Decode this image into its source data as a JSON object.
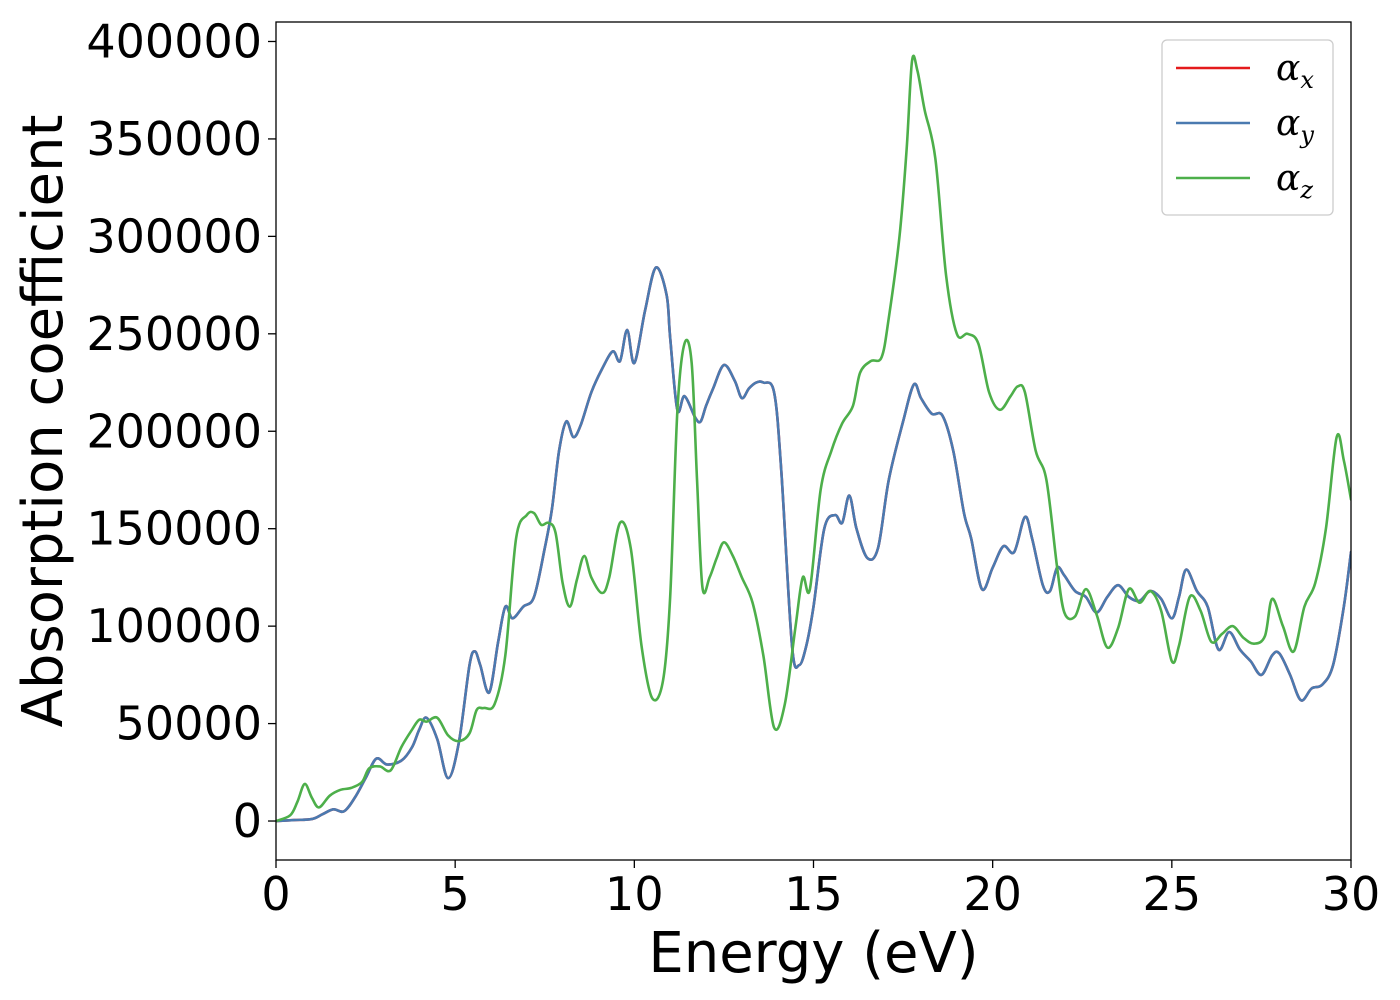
{
  "chart_data": {
    "type": "line",
    "title": "",
    "xlabel": "Energy (eV)",
    "ylabel": "Absorption coefficient",
    "xlim": [
      0,
      30
    ],
    "ylim": [
      -20000,
      410000
    ],
    "xticks": [
      0,
      5,
      10,
      15,
      20,
      25,
      30
    ],
    "yticks": [
      0,
      50000,
      100000,
      150000,
      200000,
      250000,
      300000,
      350000,
      400000
    ],
    "grid": false,
    "legend_position": "top-right",
    "colors": {
      "alpha_x": "#e41a1c",
      "alpha_y": "#4a7ab0",
      "alpha_z": "#4daf4a"
    },
    "series": [
      {
        "name": "αx",
        "legend_base": "α",
        "legend_sub": "x",
        "color": "#e41a1c",
        "x": [
          0,
          0.5,
          1.0,
          1.3,
          1.6,
          1.9,
          2.2,
          2.5,
          2.8,
          3.1,
          3.5,
          3.8,
          4.0,
          4.2,
          4.5,
          4.8,
          5.1,
          5.4,
          5.55,
          5.7,
          5.95,
          6.2,
          6.4,
          6.6,
          6.9,
          7.2,
          7.5,
          7.7,
          7.9,
          8.1,
          8.3,
          8.5,
          8.8,
          9.1,
          9.4,
          9.6,
          9.8,
          10.0,
          10.3,
          10.6,
          10.9,
          11.0,
          11.2,
          11.4,
          11.7,
          11.85,
          12.0,
          12.2,
          12.5,
          12.8,
          13.0,
          13.2,
          13.4,
          13.6,
          13.9,
          14.1,
          14.4,
          14.6,
          14.8,
          15.0,
          15.3,
          15.6,
          15.8,
          16.0,
          16.2,
          16.5,
          16.8,
          17.1,
          17.5,
          17.8,
          18.0,
          18.3,
          18.6,
          18.9,
          19.2,
          19.4,
          19.7,
          20.0,
          20.3,
          20.6,
          20.9,
          21.1,
          21.4,
          21.6,
          21.8,
          22.0,
          22.3,
          22.6,
          22.9,
          23.2,
          23.5,
          23.8,
          24.1,
          24.4,
          24.7,
          25.0,
          25.2,
          25.4,
          25.7,
          26.0,
          26.3,
          26.6,
          26.9,
          27.2,
          27.5,
          27.8,
          28.0,
          28.3,
          28.6,
          28.9,
          29.2,
          29.5,
          29.8,
          30.0
        ],
        "y": [
          0,
          500,
          1000,
          3500,
          6000,
          5000,
          12000,
          22000,
          32000,
          29000,
          31000,
          38000,
          47000,
          53000,
          42000,
          22000,
          40000,
          80000,
          87000,
          80000,
          66000,
          92000,
          110000,
          104000,
          110000,
          115000,
          140000,
          160000,
          190000,
          205000,
          197000,
          203000,
          220000,
          232000,
          241000,
          236000,
          252000,
          235000,
          262000,
          284000,
          270000,
          248000,
          211000,
          218000,
          207000,
          205000,
          213000,
          222000,
          234000,
          226000,
          217000,
          222000,
          225000,
          225000,
          220000,
          180000,
          90000,
          80000,
          90000,
          110000,
          150000,
          157000,
          153000,
          167000,
          150000,
          135000,
          140000,
          175000,
          205000,
          224000,
          217000,
          209000,
          208000,
          190000,
          158000,
          145000,
          119000,
          130000,
          141000,
          138000,
          156000,
          145000,
          121000,
          118000,
          130000,
          126000,
          118000,
          115000,
          107000,
          115000,
          121000,
          115000,
          113000,
          118000,
          114000,
          104000,
          115000,
          129000,
          118000,
          110000,
          88000,
          97000,
          88000,
          82000,
          75000,
          85000,
          86000,
          75000,
          62000,
          68000,
          70000,
          80000,
          110000,
          138000
        ]
      },
      {
        "name": "αy",
        "legend_base": "α",
        "legend_sub": "y",
        "color": "#4a7ab0",
        "x": [
          0,
          0.5,
          1.0,
          1.3,
          1.6,
          1.9,
          2.2,
          2.5,
          2.8,
          3.1,
          3.5,
          3.8,
          4.0,
          4.2,
          4.5,
          4.8,
          5.1,
          5.4,
          5.55,
          5.7,
          5.95,
          6.2,
          6.4,
          6.6,
          6.9,
          7.2,
          7.5,
          7.7,
          7.9,
          8.1,
          8.3,
          8.5,
          8.8,
          9.1,
          9.4,
          9.6,
          9.8,
          10.0,
          10.3,
          10.6,
          10.9,
          11.0,
          11.2,
          11.4,
          11.7,
          11.85,
          12.0,
          12.2,
          12.5,
          12.8,
          13.0,
          13.2,
          13.4,
          13.6,
          13.9,
          14.1,
          14.4,
          14.6,
          14.8,
          15.0,
          15.3,
          15.6,
          15.8,
          16.0,
          16.2,
          16.5,
          16.8,
          17.1,
          17.5,
          17.8,
          18.0,
          18.3,
          18.6,
          18.9,
          19.2,
          19.4,
          19.7,
          20.0,
          20.3,
          20.6,
          20.9,
          21.1,
          21.4,
          21.6,
          21.8,
          22.0,
          22.3,
          22.6,
          22.9,
          23.2,
          23.5,
          23.8,
          24.1,
          24.4,
          24.7,
          25.0,
          25.2,
          25.4,
          25.7,
          26.0,
          26.3,
          26.6,
          26.9,
          27.2,
          27.5,
          27.8,
          28.0,
          28.3,
          28.6,
          28.9,
          29.2,
          29.5,
          29.8,
          30.0
        ],
        "y": [
          0,
          500,
          1000,
          3500,
          6000,
          5000,
          12000,
          22000,
          32000,
          29000,
          31000,
          38000,
          47000,
          53000,
          42000,
          22000,
          40000,
          80000,
          87000,
          80000,
          66000,
          92000,
          110000,
          104000,
          110000,
          115000,
          140000,
          160000,
          190000,
          205000,
          197000,
          203000,
          220000,
          232000,
          241000,
          236000,
          252000,
          235000,
          262000,
          284000,
          270000,
          248000,
          211000,
          218000,
          207000,
          205000,
          213000,
          222000,
          234000,
          226000,
          217000,
          222000,
          225000,
          225000,
          220000,
          180000,
          90000,
          80000,
          90000,
          110000,
          150000,
          157000,
          153000,
          167000,
          150000,
          135000,
          140000,
          175000,
          205000,
          224000,
          217000,
          209000,
          208000,
          190000,
          158000,
          145000,
          119000,
          130000,
          141000,
          138000,
          156000,
          145000,
          121000,
          118000,
          130000,
          126000,
          118000,
          115000,
          107000,
          115000,
          121000,
          115000,
          113000,
          118000,
          114000,
          104000,
          115000,
          129000,
          118000,
          110000,
          88000,
          97000,
          88000,
          82000,
          75000,
          85000,
          86000,
          75000,
          62000,
          68000,
          70000,
          80000,
          110000,
          138000
        ]
      },
      {
        "name": "αz",
        "legend_base": "α",
        "legend_sub": "z",
        "color": "#4daf4a",
        "x": [
          0,
          0.4,
          0.6,
          0.8,
          1.0,
          1.2,
          1.5,
          1.8,
          2.1,
          2.4,
          2.6,
          2.9,
          3.2,
          3.5,
          3.8,
          4.0,
          4.2,
          4.5,
          4.8,
          5.1,
          5.4,
          5.6,
          5.8,
          6.1,
          6.4,
          6.7,
          7.0,
          7.2,
          7.4,
          7.6,
          7.8,
          8.0,
          8.2,
          8.4,
          8.6,
          8.8,
          9.1,
          9.3,
          9.6,
          9.9,
          10.2,
          10.5,
          10.8,
          11.0,
          11.2,
          11.4,
          11.6,
          11.75,
          11.9,
          12.1,
          12.3,
          12.5,
          12.75,
          13.0,
          13.3,
          13.6,
          13.9,
          14.2,
          14.5,
          14.7,
          14.9,
          15.2,
          15.5,
          15.8,
          16.1,
          16.3,
          16.6,
          16.9,
          17.1,
          17.4,
          17.6,
          17.75,
          17.9,
          18.1,
          18.4,
          18.7,
          19.0,
          19.3,
          19.6,
          19.9,
          20.2,
          20.5,
          20.7,
          20.9,
          21.2,
          21.5,
          21.8,
          22.0,
          22.3,
          22.6,
          22.9,
          23.2,
          23.5,
          23.8,
          24.1,
          24.4,
          24.7,
          25.0,
          25.2,
          25.5,
          25.8,
          26.1,
          26.4,
          26.7,
          27.0,
          27.3,
          27.6,
          27.8,
          28.1,
          28.4,
          28.7,
          29.0,
          29.3,
          29.6,
          29.8,
          30.0
        ],
        "y": [
          0,
          3000,
          10000,
          19000,
          12000,
          7000,
          13000,
          16000,
          17000,
          20000,
          27000,
          28000,
          26000,
          38000,
          47000,
          52000,
          51000,
          53000,
          44000,
          41000,
          45000,
          57000,
          58000,
          60000,
          85000,
          145000,
          157000,
          158000,
          152000,
          153000,
          148000,
          122000,
          110000,
          124000,
          136000,
          125000,
          117000,
          125000,
          153000,
          140000,
          90000,
          63000,
          72000,
          115000,
          210000,
          245000,
          235000,
          175000,
          120000,
          125000,
          135000,
          143000,
          136000,
          125000,
          112000,
          85000,
          48000,
          60000,
          100000,
          125000,
          119000,
          170000,
          190000,
          204000,
          213000,
          230000,
          236000,
          238000,
          258000,
          300000,
          345000,
          390000,
          385000,
          365000,
          340000,
          280000,
          250000,
          250000,
          245000,
          220000,
          211000,
          218000,
          223000,
          220000,
          190000,
          175000,
          130000,
          107000,
          105000,
          119000,
          106000,
          89000,
          99000,
          119000,
          112000,
          118000,
          108000,
          82000,
          90000,
          115000,
          108000,
          92000,
          96000,
          100000,
          94000,
          91000,
          95000,
          114000,
          100000,
          87000,
          110000,
          122000,
          150000,
          197000,
          185000,
          165000
        ]
      }
    ]
  }
}
